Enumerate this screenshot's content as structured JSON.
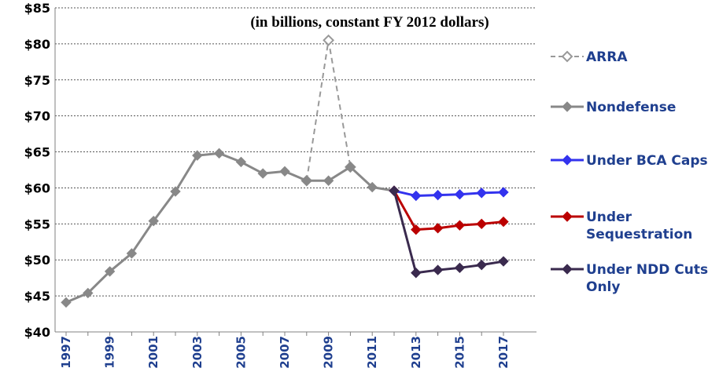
{
  "chart_data": {
    "type": "line",
    "title": "",
    "subtitle": "(in billions, constant FY 2012 dollars)",
    "xlabel": "",
    "ylabel": "",
    "ylim": [
      40,
      85
    ],
    "yticks": [
      40,
      45,
      50,
      55,
      60,
      65,
      70,
      75,
      80,
      85
    ],
    "ytick_labels": [
      "$40",
      "$45",
      "$50",
      "$55",
      "$60",
      "$65",
      "$70",
      "$75",
      "$80",
      "$85"
    ],
    "xlim": [
      1997,
      2017
    ],
    "xticks": [
      "1997",
      "1999",
      "2001",
      "2003",
      "2005",
      "2007",
      "2009",
      "2011",
      "2013",
      "2015",
      "2017"
    ],
    "grid": true,
    "legend_position": "right",
    "series": [
      {
        "name": "ARRA",
        "color": "#999999",
        "dashed": true,
        "hollow_markers": true,
        "points": [
          [
            2008,
            61.0
          ],
          [
            2009,
            80.5
          ],
          [
            2010,
            62.9
          ]
        ]
      },
      {
        "name": "Nondefense",
        "color": "#888888",
        "dashed": false,
        "hollow_markers": false,
        "points": [
          [
            1997,
            44.1
          ],
          [
            1998,
            45.4
          ],
          [
            1999,
            48.4
          ],
          [
            2000,
            50.9
          ],
          [
            2001,
            55.4
          ],
          [
            2002,
            59.5
          ],
          [
            2003,
            64.5
          ],
          [
            2004,
            64.8
          ],
          [
            2005,
            63.6
          ],
          [
            2006,
            62.0
          ],
          [
            2007,
            62.3
          ],
          [
            2008,
            61.0
          ],
          [
            2009,
            61.0
          ],
          [
            2010,
            62.9
          ],
          [
            2011,
            60.1
          ],
          [
            2012,
            59.6
          ]
        ]
      },
      {
        "name": "Under BCA Caps",
        "color": "#3333ee",
        "dashed": false,
        "hollow_markers": false,
        "points": [
          [
            2012,
            59.6
          ],
          [
            2013,
            58.9
          ],
          [
            2014,
            59.0
          ],
          [
            2015,
            59.1
          ],
          [
            2016,
            59.3
          ],
          [
            2017,
            59.4
          ]
        ]
      },
      {
        "name": "Under Sequestration",
        "legend_lines": [
          "Under",
          "Sequestration"
        ],
        "color": "#bb0000",
        "dashed": false,
        "hollow_markers": false,
        "points": [
          [
            2012,
            59.6
          ],
          [
            2013,
            54.2
          ],
          [
            2014,
            54.4
          ],
          [
            2015,
            54.8
          ],
          [
            2016,
            55.0
          ],
          [
            2017,
            55.3
          ]
        ]
      },
      {
        "name": "Under NDD Cuts Only",
        "legend_lines": [
          "Under NDD Cuts",
          "Only"
        ],
        "color": "#3a2a4e",
        "dashed": false,
        "hollow_markers": false,
        "points": [
          [
            2012,
            59.6
          ],
          [
            2013,
            48.2
          ],
          [
            2014,
            48.6
          ],
          [
            2015,
            48.9
          ],
          [
            2016,
            49.3
          ],
          [
            2017,
            49.8
          ]
        ]
      }
    ]
  }
}
